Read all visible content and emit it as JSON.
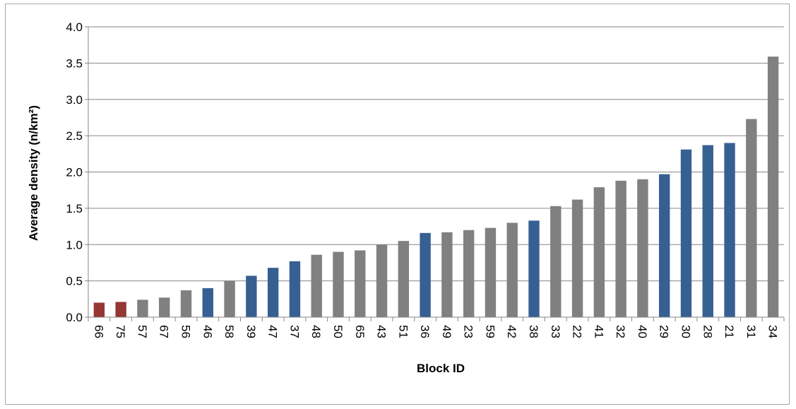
{
  "chart_data": {
    "type": "bar",
    "title": "",
    "xlabel": "Block ID",
    "ylabel": "Average density  (n/km²)",
    "ylim": [
      0,
      4.0
    ],
    "yticks": [
      "0.0",
      "0.5",
      "1.0",
      "1.5",
      "2.0",
      "2.5",
      "3.0",
      "3.5",
      "4.0"
    ],
    "grid": true,
    "legend": "none",
    "x_tick_rotation": "vertical",
    "categories": [
      "66",
      "75",
      "57",
      "67",
      "56",
      "46",
      "58",
      "39",
      "47",
      "37",
      "48",
      "50",
      "65",
      "43",
      "51",
      "36",
      "49",
      "23",
      "59",
      "42",
      "38",
      "33",
      "22",
      "41",
      "32",
      "40",
      "29",
      "30",
      "28",
      "21",
      "31",
      "34"
    ],
    "values": [
      0.2,
      0.21,
      0.24,
      0.27,
      0.37,
      0.4,
      0.5,
      0.57,
      0.68,
      0.77,
      0.86,
      0.9,
      0.92,
      1.0,
      1.05,
      1.16,
      1.17,
      1.2,
      1.23,
      1.3,
      1.33,
      1.53,
      1.62,
      1.79,
      1.88,
      1.9,
      1.97,
      2.31,
      2.37,
      2.4,
      2.73,
      3.59
    ],
    "bar_colors": [
      "#953735",
      "#953735",
      "#808080",
      "#808080",
      "#808080",
      "#376092",
      "#808080",
      "#376092",
      "#376092",
      "#376092",
      "#808080",
      "#808080",
      "#808080",
      "#808080",
      "#808080",
      "#376092",
      "#808080",
      "#808080",
      "#808080",
      "#808080",
      "#376092",
      "#808080",
      "#808080",
      "#808080",
      "#808080",
      "#808080",
      "#376092",
      "#376092",
      "#376092",
      "#376092",
      "#808080",
      "#808080"
    ],
    "colors": {
      "red": "#953735",
      "blue": "#376092",
      "gray": "#808080",
      "gridline": "#868686",
      "frame": "#a6a6a6"
    }
  }
}
